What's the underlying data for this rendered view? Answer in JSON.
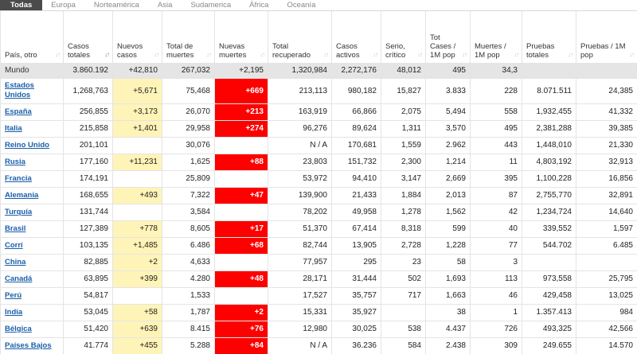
{
  "tabs": [
    "Todas",
    "Europa",
    "Norteamérica",
    "Asia",
    "Sudamerica",
    "África",
    "Oceanía"
  ],
  "colors": {
    "new_cases_highlight": "#fff4b8",
    "new_deaths_highlight": "#fd0000",
    "world_row": "#e5e5e5",
    "link": "#1a5fa8"
  },
  "columns": [
    {
      "label": "País, otro",
      "sorted": false
    },
    {
      "label": "Casos totales",
      "sorted": true
    },
    {
      "label": "Nuevos casos",
      "sorted": false
    },
    {
      "label": "Total de muertes",
      "sorted": false
    },
    {
      "label": "Nuevas muertes",
      "sorted": false
    },
    {
      "label": "Total recuperado",
      "sorted": false
    },
    {
      "label": "Casos activos",
      "sorted": false
    },
    {
      "label": "Serio, crítico",
      "sorted": false
    },
    {
      "label": "Tot Cases / 1M pop",
      "sorted": false
    },
    {
      "label": "Muertes / 1M pop",
      "sorted": false
    },
    {
      "label": "Pruebas totales",
      "sorted": false
    },
    {
      "label": "Pruebas / 1M pop",
      "sorted": false
    }
  ],
  "rows": [
    {
      "country": "Mundo",
      "link": false,
      "cells": [
        "3.860.192",
        "+42,810",
        "267,032",
        "+2,195",
        "1,320,984",
        "2,272,176",
        "48,012",
        "495",
        "34,3",
        "",
        ""
      ]
    },
    {
      "country": "Estados Unidos",
      "link": true,
      "cells": [
        "1,268,763",
        "+5,671",
        "75,468",
        "+669",
        "213,113",
        "980,182",
        "15,827",
        "3.833",
        "228",
        "8.071.511",
        "24,385"
      ]
    },
    {
      "country": "España",
      "link": true,
      "cells": [
        "256,855",
        "+3,173",
        "26,070",
        "+213",
        "163,919",
        "66,866",
        "2,075",
        "5,494",
        "558",
        "1,932,455",
        "41,332"
      ]
    },
    {
      "country": "Italia",
      "link": true,
      "cells": [
        "215,858",
        "+1,401",
        "29,958",
        "+274",
        "96,276",
        "89,624",
        "1,311",
        "3,570",
        "495",
        "2,381,288",
        "39,385"
      ]
    },
    {
      "country": "Reino Unido",
      "link": true,
      "cells": [
        "201,101",
        "",
        "30,076",
        "",
        "N / A",
        "170,681",
        "1,559",
        "2.962",
        "443",
        "1,448,010",
        "21,330"
      ]
    },
    {
      "country": "Rusia",
      "link": true,
      "cells": [
        "177,160",
        "+11,231",
        "1,625",
        "+88",
        "23,803",
        "151,732",
        "2,300",
        "1,214",
        "11",
        "4,803,192",
        "32,913"
      ]
    },
    {
      "country": "Francia",
      "link": true,
      "cells": [
        "174,191",
        "",
        "25,809",
        "",
        "53,972",
        "94,410",
        "3,147",
        "2,669",
        "395",
        "1,100,228",
        "16,856"
      ]
    },
    {
      "country": "Alemania",
      "link": true,
      "cells": [
        "168,655",
        "+493",
        "7,322",
        "+47",
        "139,900",
        "21,433",
        "1,884",
        "2,013",
        "87",
        "2,755,770",
        "32,891"
      ]
    },
    {
      "country": "Turquía",
      "link": true,
      "cells": [
        "131,744",
        "",
        "3,584",
        "",
        "78,202",
        "49,958",
        "1,278",
        "1,562",
        "42",
        "1,234,724",
        "14,640"
      ]
    },
    {
      "country": "Brasil",
      "link": true,
      "cells": [
        "127,389",
        "+778",
        "8,605",
        "+17",
        "51,370",
        "67,414",
        "8,318",
        "599",
        "40",
        "339,552",
        "1,597"
      ]
    },
    {
      "country": "Corrí",
      "link": true,
      "cells": [
        "103,135",
        "+1,485",
        "6.486",
        "+68",
        "82,744",
        "13,905",
        "2,728",
        "1,228",
        "77",
        "544.702",
        "6.485"
      ]
    },
    {
      "country": "China",
      "link": true,
      "cells": [
        "82,885",
        "+2",
        "4,633",
        "",
        "77,957",
        "295",
        "23",
        "58",
        "3",
        "",
        ""
      ]
    },
    {
      "country": "Canadá",
      "link": true,
      "cells": [
        "63,895",
        "+399",
        "4.280",
        "+48",
        "28,171",
        "31,444",
        "502",
        "1,693",
        "113",
        "973,558",
        "25,795"
      ]
    },
    {
      "country": "Perú",
      "link": true,
      "cells": [
        "54,817",
        "",
        "1,533",
        "",
        "17,527",
        "35,757",
        "717",
        "1,663",
        "46",
        "429,458",
        "13,025"
      ]
    },
    {
      "country": "India",
      "link": true,
      "cells": [
        "53,045",
        "+58",
        "1,787",
        "+2",
        "15,331",
        "35,927",
        "",
        "38",
        "1",
        "1.357.413",
        "984"
      ]
    },
    {
      "country": "Bélgica",
      "link": true,
      "cells": [
        "51,420",
        "+639",
        "8.415",
        "+76",
        "12,980",
        "30,025",
        "538",
        "4.437",
        "726",
        "493,325",
        "42,566"
      ]
    },
    {
      "country": "Países Bajos",
      "link": true,
      "cells": [
        "41.774",
        "+455",
        "5.288",
        "+84",
        "N / A",
        "36.236",
        "584",
        "2.438",
        "309",
        "249.655",
        "14.570"
      ]
    }
  ]
}
